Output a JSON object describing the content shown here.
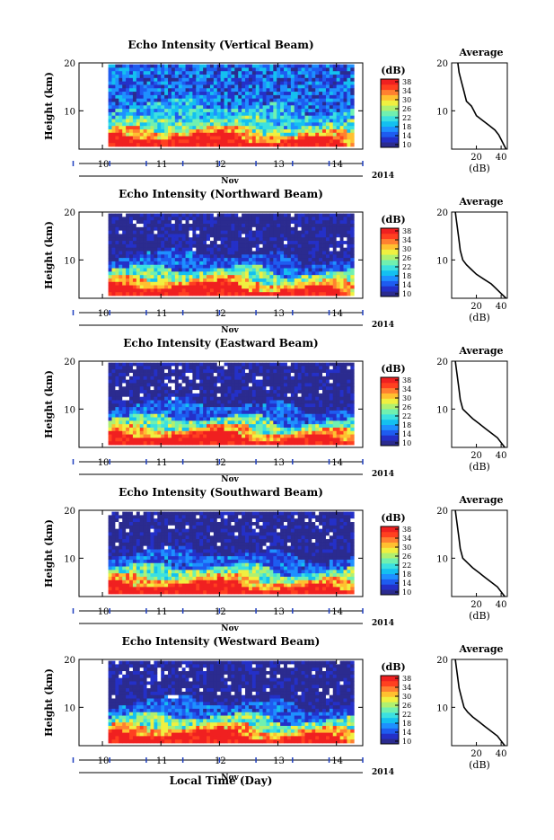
{
  "figure": {
    "xlabel": "Local Time (Day)",
    "month_label": "Nov",
    "year_label": "2014",
    "day_ticks": [
      "10",
      "11",
      "12",
      "13",
      "14"
    ],
    "colors": {
      "scale": [
        "#2b2b8f",
        "#2430c8",
        "#1e5cf0",
        "#1e90ff",
        "#14c0f0",
        "#3ce0e0",
        "#70f0b0",
        "#b0f070",
        "#f0f040",
        "#ffc030",
        "#ff8030",
        "#ff4020",
        "#f02020"
      ],
      "background": "#2a2a8c",
      "axis": "#000000",
      "tick_marker": "#1f3fbf"
    }
  },
  "chart_data": [
    {
      "type": "heatmap",
      "title": "Echo Intensity (Vertical Beam)",
      "ylabel": "Height (km)",
      "y_ticks": [
        "20",
        "10"
      ],
      "ylim": [
        2,
        20
      ],
      "x_start_day": 10.1,
      "x_end_day": 14.3,
      "xlim": [
        9.6,
        14.45
      ],
      "colorbar": {
        "unit": "(dB)",
        "ticks": [
          "38",
          "34",
          "30",
          "26",
          "22",
          "18",
          "14",
          "10"
        ],
        "range": [
          10,
          38
        ]
      },
      "profile": {
        "title": "Average",
        "xlabel": "(dB)",
        "x_ticks": [
          "20",
          "40"
        ],
        "y_ticks": [
          "20",
          "10"
        ],
        "xlim": [
          0,
          45
        ],
        "ylim": [
          2,
          20
        ],
        "points": [
          [
            5,
            20
          ],
          [
            6,
            18
          ],
          [
            8,
            16
          ],
          [
            10,
            14
          ],
          [
            12,
            12
          ],
          [
            16,
            11
          ],
          [
            18,
            10
          ],
          [
            20,
            9
          ],
          [
            25,
            8
          ],
          [
            30,
            7
          ],
          [
            35,
            6
          ],
          [
            38,
            5
          ],
          [
            40,
            4
          ],
          [
            42,
            3
          ],
          [
            44,
            2
          ]
        ]
      }
    },
    {
      "type": "heatmap",
      "title": "Echo Intensity (Northward Beam)",
      "ylabel": "Height (km)",
      "y_ticks": [
        "20",
        "10"
      ],
      "ylim": [
        2,
        20
      ],
      "x_start_day": 10.1,
      "x_end_day": 14.3,
      "xlim": [
        9.6,
        14.45
      ],
      "colorbar": {
        "unit": "(dB)",
        "ticks": [
          "38",
          "34",
          "30",
          "26",
          "22",
          "18",
          "14",
          "10"
        ],
        "range": [
          10,
          38
        ]
      },
      "profile": {
        "title": "Average",
        "xlabel": "(dB)",
        "x_ticks": [
          "20",
          "40"
        ],
        "y_ticks": [
          "20",
          "10"
        ],
        "xlim": [
          0,
          45
        ],
        "ylim": [
          2,
          20
        ],
        "points": [
          [
            3,
            20
          ],
          [
            4,
            18
          ],
          [
            5,
            16
          ],
          [
            6,
            14
          ],
          [
            7,
            12
          ],
          [
            9,
            10
          ],
          [
            12,
            9
          ],
          [
            16,
            8
          ],
          [
            20,
            7
          ],
          [
            26,
            6
          ],
          [
            32,
            5
          ],
          [
            36,
            4
          ],
          [
            40,
            3
          ],
          [
            44,
            2
          ]
        ]
      }
    },
    {
      "type": "heatmap",
      "title": "Echo Intensity (Eastward Beam)",
      "ylabel": "Height (km)",
      "y_ticks": [
        "20",
        "10"
      ],
      "ylim": [
        2,
        20
      ],
      "x_start_day": 10.1,
      "x_end_day": 14.3,
      "xlim": [
        9.6,
        14.45
      ],
      "colorbar": {
        "unit": "(dB)",
        "ticks": [
          "38",
          "34",
          "30",
          "26",
          "22",
          "18",
          "14",
          "10"
        ],
        "range": [
          10,
          38
        ]
      },
      "profile": {
        "title": "Average",
        "xlabel": "(dB)",
        "x_ticks": [
          "20",
          "40"
        ],
        "y_ticks": [
          "20",
          "10"
        ],
        "xlim": [
          0,
          45
        ],
        "ylim": [
          2,
          20
        ],
        "points": [
          [
            3,
            20
          ],
          [
            4,
            18
          ],
          [
            5,
            16
          ],
          [
            6,
            14
          ],
          [
            7,
            12
          ],
          [
            9,
            10
          ],
          [
            13,
            9
          ],
          [
            17,
            8
          ],
          [
            22,
            7
          ],
          [
            27,
            6
          ],
          [
            32,
            5
          ],
          [
            37,
            4
          ],
          [
            40,
            3
          ],
          [
            43,
            2
          ]
        ]
      }
    },
    {
      "type": "heatmap",
      "title": "Echo Intensity (Southward Beam)",
      "ylabel": "Height (km)",
      "y_ticks": [
        "20",
        "10"
      ],
      "ylim": [
        2,
        20
      ],
      "x_start_day": 10.1,
      "x_end_day": 14.3,
      "xlim": [
        9.6,
        14.45
      ],
      "colorbar": {
        "unit": "(dB)",
        "ticks": [
          "38",
          "34",
          "30",
          "26",
          "22",
          "18",
          "14",
          "10"
        ],
        "range": [
          10,
          38
        ]
      },
      "profile": {
        "title": "Average",
        "xlabel": "(dB)",
        "x_ticks": [
          "20",
          "40"
        ],
        "y_ticks": [
          "20",
          "10"
        ],
        "xlim": [
          0,
          45
        ],
        "ylim": [
          2,
          20
        ],
        "points": [
          [
            3,
            20
          ],
          [
            4,
            18
          ],
          [
            5,
            16
          ],
          [
            6,
            14
          ],
          [
            7,
            12
          ],
          [
            9,
            10
          ],
          [
            13,
            9
          ],
          [
            17,
            8
          ],
          [
            22,
            7
          ],
          [
            27,
            6
          ],
          [
            32,
            5
          ],
          [
            37,
            4
          ],
          [
            40,
            3
          ],
          [
            43,
            2
          ]
        ]
      }
    },
    {
      "type": "heatmap",
      "title": "Echo Intensity (Westward Beam)",
      "ylabel": "Height (km)",
      "y_ticks": [
        "20",
        "10"
      ],
      "ylim": [
        2,
        20
      ],
      "x_start_day": 10.1,
      "x_end_day": 14.3,
      "xlim": [
        9.6,
        14.45
      ],
      "colorbar": {
        "unit": "(dB)",
        "ticks": [
          "38",
          "34",
          "30",
          "26",
          "22",
          "18",
          "14",
          "10"
        ],
        "range": [
          10,
          38
        ]
      },
      "profile": {
        "title": "Average",
        "xlabel": "(dB)",
        "x_ticks": [
          "20",
          "40"
        ],
        "y_ticks": [
          "20",
          "10"
        ],
        "xlim": [
          0,
          45
        ],
        "ylim": [
          2,
          20
        ],
        "points": [
          [
            3,
            20
          ],
          [
            4,
            18
          ],
          [
            5,
            16
          ],
          [
            6,
            14
          ],
          [
            8,
            12
          ],
          [
            10,
            10
          ],
          [
            13,
            9
          ],
          [
            17,
            8
          ],
          [
            22,
            7
          ],
          [
            27,
            6
          ],
          [
            32,
            5
          ],
          [
            37,
            4
          ],
          [
            40,
            3
          ],
          [
            43,
            2
          ]
        ]
      }
    }
  ]
}
